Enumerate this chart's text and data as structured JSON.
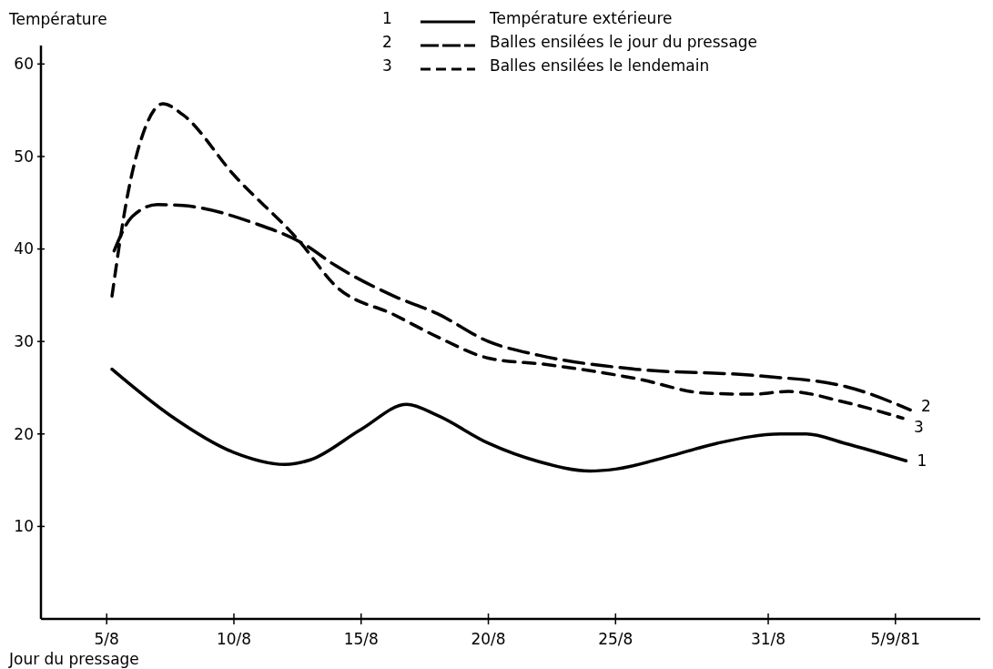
{
  "chart_data": {
    "type": "line",
    "xlabel": "Jour du pressage",
    "ylabel": "Température",
    "xlim": [
      "1981-08-02T10:00",
      "1981-09-08T08:00"
    ],
    "ylim": [
      0,
      62
    ],
    "xticks": [
      {
        "value": "1981-08-05",
        "label": "5/8"
      },
      {
        "value": "1981-08-10",
        "label": "10/8"
      },
      {
        "value": "1981-08-15",
        "label": "15/8"
      },
      {
        "value": "1981-08-20",
        "label": "20/8"
      },
      {
        "value": "1981-08-25",
        "label": "25/8"
      },
      {
        "value": "1981-08-31",
        "label": "31/8"
      },
      {
        "value": "1981-09-05",
        "label": "5/9/81"
      }
    ],
    "yticks": [
      10,
      20,
      30,
      40,
      50,
      60
    ],
    "grid": false,
    "legend": "top right",
    "marker": "none",
    "series": [
      {
        "name": "Température extérieure",
        "color": "#000000",
        "line_style": "solid",
        "x": [
          "1981-08-05T05:00",
          "1981-08-07T12:00",
          "1981-08-10",
          "1981-08-12",
          "1981-08-13",
          "1981-08-15",
          "1981-08-16T19:00",
          "1981-08-18",
          "1981-08-20",
          "1981-08-22",
          "1981-08-24",
          "1981-08-25",
          "1981-08-27",
          "1981-08-29",
          "1981-08-31T12:00",
          "1981-09-01T12:00",
          "1981-09-03",
          "1981-09-05T10:00"
        ],
        "values": [
          27,
          22,
          18,
          16.7,
          17.2,
          20.5,
          23.2,
          22,
          19,
          17,
          16,
          16.2,
          17.5,
          19,
          20,
          20,
          19,
          17.1
        ]
      },
      {
        "name": "Balles ensilées le jour du pressage",
        "color": "#000000",
        "line_style": "dashed",
        "x": [
          "1981-08-05T07:00",
          "1981-08-06",
          "1981-08-07",
          "1981-08-08",
          "1981-08-10T19:00",
          "1981-08-12T17:00",
          "1981-08-14",
          "1981-08-16T07:00",
          "1981-08-18",
          "1981-08-20",
          "1981-08-22",
          "1981-08-25T19:00",
          "1981-08-30T14:00",
          "1981-09-03T02:00",
          "1981-09-05T14:00"
        ],
        "values": [
          39.8,
          43.5,
          44.8,
          44.7,
          42.8,
          40.6,
          38.2,
          34.9,
          33,
          30,
          28.5,
          27,
          26.3,
          25.1,
          22.6
        ]
      },
      {
        "name": "Balles ensilées le lendemain",
        "color": "#000000",
        "line_style": "dashed",
        "x": [
          "1981-08-05T05:00",
          "1981-08-05T20:00",
          "1981-08-06T12:00",
          "1981-08-07T05:00",
          "1981-08-08",
          "1981-08-10",
          "1981-08-12T14:00",
          "1981-08-14",
          "1981-08-16T07:00",
          "1981-08-18",
          "1981-08-20",
          "1981-08-22T07:00",
          "1981-08-25T19:00",
          "1981-08-28T14:00",
          "1981-08-30T10:00",
          "1981-08-31T19:00",
          "1981-09-02T22:00",
          "1981-09-05T07:00"
        ],
        "values": [
          34.9,
          46,
          53,
          55.7,
          54.5,
          48,
          40.8,
          36,
          32.9,
          30.5,
          28.2,
          27.5,
          26,
          24.4,
          24.3,
          24.6,
          23.5,
          21.7
        ]
      }
    ],
    "annotations": [
      {
        "text": "1",
        "x": "1981-09-05T10:00",
        "y": 17.1
      },
      {
        "text": "2",
        "x": "1981-09-05T14:00",
        "y": 22.6
      },
      {
        "text": "3",
        "x": "1981-09-05T07:00",
        "y": 21.7
      }
    ]
  }
}
